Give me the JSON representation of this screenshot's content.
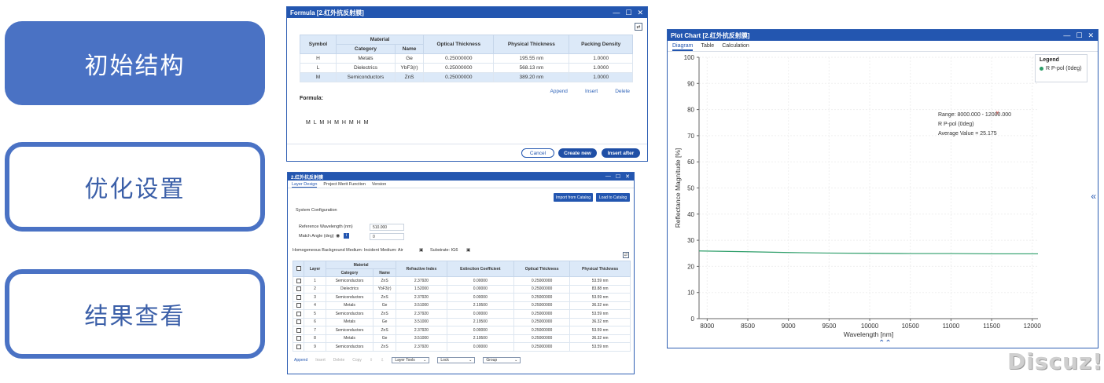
{
  "nav": {
    "item1": "初始结构",
    "item2": "优化设置",
    "item3": "结果查看"
  },
  "formula_window": {
    "title": "Formula [2.红外抗反射膜]",
    "headers": {
      "symbol": "Symbol",
      "material": "Material",
      "category": "Category",
      "name": "Name",
      "optical": "Optical Thickness",
      "physical": "Physical Thickness",
      "packing": "Packing Density"
    },
    "rows": [
      {
        "symbol": "H",
        "category": "Metals",
        "name": "Ge",
        "optical": "0.25000000",
        "physical": "195.55 nm",
        "packing": "1.0000"
      },
      {
        "symbol": "L",
        "category": "Dielectrics",
        "name": "YbF3(r)",
        "optical": "0.25000000",
        "physical": "568.13 nm",
        "packing": "1.0000"
      },
      {
        "symbol": "M",
        "category": "Semiconductors",
        "name": "ZnS",
        "optical": "0.25000000",
        "physical": "389.20 nm",
        "packing": "1.0000"
      }
    ],
    "append": "Append",
    "insert": "Insert",
    "delete": "Delete",
    "formula_label": "Formula:",
    "formula_value": "M L M H M H M H M",
    "cancel": "Cancel",
    "create_new": "Create new",
    "insert_after": "Insert after"
  },
  "layer_window": {
    "title": "2.红外抗反射膜",
    "tabs": [
      "Layer Design",
      "Project Merit Function",
      "Version"
    ],
    "import_btn": "Import from Catalog",
    "load_btn": "Load to Catalog",
    "system_config": "System Configuration",
    "ref_wavelength_label": "Reference Wavelength (nm)",
    "ref_wavelength_value": "510.000",
    "match_angle_label": "Match Angle (deg)",
    "match_angle_value": "0",
    "medium_line": "Homogeneous Background Medium:  Incident Medium: Air",
    "substrate": "Substrate: IG6",
    "headers": {
      "layer": "Layer",
      "material": "Material",
      "category": "Category",
      "name": "Name",
      "ri": "Refractive Index",
      "ec": "Extinction Coefficient",
      "ot": "Optical Thickness",
      "pt": "Physical Thickness"
    },
    "rows": [
      {
        "layer": "1",
        "category": "Semiconductors",
        "name": "ZnS",
        "ri": "2.37920",
        "ec": "0.00000",
        "ot": "0.25000000",
        "pt": "53.59 nm"
      },
      {
        "layer": "2",
        "category": "Dielectrics",
        "name": "YbF3(r)",
        "ri": "1.52000",
        "ec": "0.00000",
        "ot": "0.25000000",
        "pt": "83.88 nm"
      },
      {
        "layer": "3",
        "category": "Semiconductors",
        "name": "ZnS",
        "ri": "2.37920",
        "ec": "0.00000",
        "ot": "0.25000000",
        "pt": "53.59 nm"
      },
      {
        "layer": "4",
        "category": "Metals",
        "name": "Ge",
        "ri": "3.51000",
        "ec": "2.19500",
        "ot": "0.25000000",
        "pt": "36.32 nm"
      },
      {
        "layer": "5",
        "category": "Semiconductors",
        "name": "ZnS",
        "ri": "2.37920",
        "ec": "0.00000",
        "ot": "0.25000000",
        "pt": "53.59 nm"
      },
      {
        "layer": "6",
        "category": "Metals",
        "name": "Ge",
        "ri": "3.51000",
        "ec": "2.19500",
        "ot": "0.25000000",
        "pt": "36.32 nm"
      },
      {
        "layer": "7",
        "category": "Semiconductors",
        "name": "ZnS",
        "ri": "2.37920",
        "ec": "0.00000",
        "ot": "0.25000000",
        "pt": "53.59 nm"
      },
      {
        "layer": "8",
        "category": "Metals",
        "name": "Ge",
        "ri": "3.51000",
        "ec": "2.19500",
        "ot": "0.25000000",
        "pt": "36.32 nm"
      },
      {
        "layer": "9",
        "category": "Semiconductors",
        "name": "ZnS",
        "ri": "2.37920",
        "ec": "0.00000",
        "ot": "0.25000000",
        "pt": "53.59 nm"
      }
    ],
    "bottom": {
      "append": "Append",
      "insert": "Insert",
      "delete": "Delete",
      "copy": "Copy",
      "layer_tools": "Layer Tools",
      "lock": "Lock",
      "group": "Group"
    }
  },
  "plot_window": {
    "title": "Plot Chart [2.红外抗反射膜]",
    "tabs": [
      "Diagram",
      "Table",
      "Calculation"
    ],
    "legend_title": "Legend",
    "legend_item": "R P-pol (0deg)",
    "annotation": [
      "Range: 8000.000 - 12000.000",
      "R P-pol (0deg)",
      "Average Value = 25.175"
    ]
  },
  "chart_data": {
    "type": "line",
    "xlabel": "Wavelength [nm]",
    "ylabel": "Reflectance Magnitude [%]",
    "xlim": [
      7900,
      12070
    ],
    "ylim": [
      0,
      100
    ],
    "xticks": [
      8000,
      8500,
      9000,
      9500,
      10000,
      10500,
      11000,
      11500,
      12000
    ],
    "yticks": [
      0,
      10,
      20,
      30,
      40,
      50,
      60,
      70,
      80,
      90,
      100
    ],
    "series": [
      {
        "name": "R P-pol (0deg)",
        "color": "#2e9e6a",
        "x": [
          7900,
          8500,
          9000,
          9500,
          10000,
          10500,
          11000,
          11500,
          12070
        ],
        "y": [
          25.9,
          25.6,
          25.3,
          25.1,
          25.0,
          24.9,
          24.9,
          24.8,
          24.8
        ]
      }
    ],
    "marker": {
      "x": 11570,
      "y": 79,
      "symbol": "x",
      "color": "#d9534f"
    }
  },
  "watermark": "Discuz!"
}
